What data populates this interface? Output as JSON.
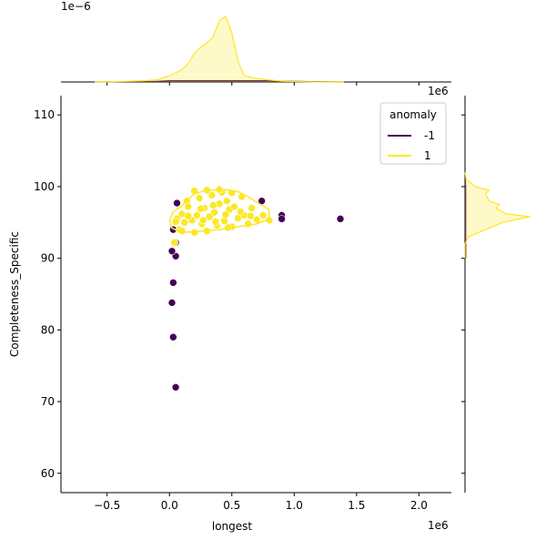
{
  "chart_data": {
    "type": "scatter",
    "xlabel": "longest",
    "ylabel": "Completeness_Specific",
    "x_offset_label": "1e6",
    "xlim": [
      -0.87,
      2.26
    ],
    "ylim": [
      57.3,
      112.7
    ],
    "xticks": [
      {
        "value": -0.5,
        "label": "−0.5"
      },
      {
        "value": 0.0,
        "label": "0.0"
      },
      {
        "value": 0.5,
        "label": "0.5"
      },
      {
        "value": 1.0,
        "label": "1.0"
      },
      {
        "value": 1.5,
        "label": "1.5"
      },
      {
        "value": 2.0,
        "label": "2.0"
      }
    ],
    "yticks": [
      60,
      70,
      80,
      90,
      100,
      110
    ],
    "legend_title": "anomaly",
    "legend_loc": "upper right",
    "series": [
      {
        "name": "-1",
        "color": "#440154",
        "x": [
          0.05,
          0.03,
          0.02,
          0.03,
          0.05,
          0.02,
          0.05,
          0.03,
          0.06,
          0.74,
          0.9,
          0.9,
          1.37
        ],
        "y": [
          72,
          79,
          83.8,
          86.6,
          90.3,
          91,
          92.2,
          94,
          97.7,
          98,
          96,
          95.5,
          95.5
        ]
      },
      {
        "name": "1",
        "color": "#fde725",
        "x": [
          0.04,
          0.06,
          0.08,
          0.1,
          0.12,
          0.14,
          0.15,
          0.18,
          0.2,
          0.22,
          0.24,
          0.26,
          0.28,
          0.3,
          0.32,
          0.34,
          0.36,
          0.38,
          0.4,
          0.42,
          0.44,
          0.46,
          0.48,
          0.5,
          0.52,
          0.55,
          0.58,
          0.6,
          0.63,
          0.66,
          0.7,
          0.75,
          0.1,
          0.2,
          0.3,
          0.4,
          0.5,
          0.25,
          0.35,
          0.45,
          0.05,
          0.15,
          0.27,
          0.37,
          0.47,
          0.57,
          0.65,
          0.8
        ],
        "y": [
          92.2,
          95.5,
          94,
          96.2,
          95,
          98,
          97.2,
          95.3,
          99.4,
          96,
          98.4,
          94.8,
          97,
          99.5,
          95.8,
          98.8,
          96.4,
          94.6,
          97.6,
          99.2,
          95.2,
          98,
          96.8,
          94.4,
          97.2,
          95.6,
          98.6,
          96,
          94.8,
          97,
          95.4,
          96,
          93.8,
          93.6,
          93.8,
          99.6,
          99.1,
          96.9,
          97.4,
          96.1,
          95.1,
          95.9,
          95.3,
          95.1,
          94.3,
          96.5,
          95.9,
          95.3
        ]
      }
    ],
    "contour": {
      "series": 1,
      "x": [
        0.0,
        0.03,
        0.1,
        0.15,
        0.2,
        0.3,
        0.45,
        0.55,
        0.63,
        0.7,
        0.8,
        0.8,
        0.7,
        0.55,
        0.4,
        0.25,
        0.1,
        0.02,
        0.0
      ],
      "y": [
        95.3,
        96.5,
        97.3,
        98.2,
        99,
        99.5,
        99.6,
        99.3,
        98.6,
        97.8,
        96.8,
        95.5,
        94.8,
        94.4,
        94,
        93.8,
        93.6,
        94.2,
        95.3
      ]
    },
    "marginal_x": {
      "offset_label": "1e−6",
      "ylim": [
        0,
        2.0
      ],
      "x": [
        -0.6,
        -0.4,
        -0.2,
        -0.1,
        0,
        0.1,
        0.15,
        0.2,
        0.25,
        0.3,
        0.35,
        0.4,
        0.45,
        0.5,
        0.55,
        0.6,
        0.7,
        0.8,
        0.9,
        1.0,
        1.2,
        1.4
      ],
      "series": [
        {
          "values": [
            0,
            0.005,
            0.01,
            0.015,
            0.03,
            0.03,
            0.03,
            0.03,
            0.03,
            0.03,
            0.03,
            0.03,
            0.03,
            0.03,
            0.03,
            0.03,
            0.03,
            0.03,
            0.02,
            0.015,
            0.005,
            0
          ]
        },
        {
          "values": [
            0,
            0.01,
            0.03,
            0.05,
            0.15,
            0.3,
            0.45,
            0.7,
            0.85,
            0.95,
            1.1,
            1.5,
            1.6,
            1.2,
            0.5,
            0.15,
            0.08,
            0.05,
            0.02,
            0.01,
            0,
            0
          ]
        }
      ]
    },
    "marginal_y": {
      "xlim": [
        0,
        1.05
      ],
      "y": [
        90,
        92,
        93,
        94,
        95,
        95.5,
        95.8,
        96.2,
        97,
        97.5,
        98,
        99,
        99.5,
        100,
        101,
        102
      ],
      "series": [
        {
          "values": [
            0.01,
            0.01,
            0.01,
            0.01,
            0.01,
            0.01,
            0.01,
            0.01,
            0.01,
            0.01,
            0.01,
            0.01,
            0.01,
            0.01,
            0.005,
            0
          ]
        },
        {
          "values": [
            0,
            0,
            0.05,
            0.3,
            0.55,
            0.8,
            0.95,
            0.6,
            0.45,
            0.5,
            0.35,
            0.3,
            0.35,
            0.15,
            0.02,
            0
          ]
        }
      ]
    }
  }
}
